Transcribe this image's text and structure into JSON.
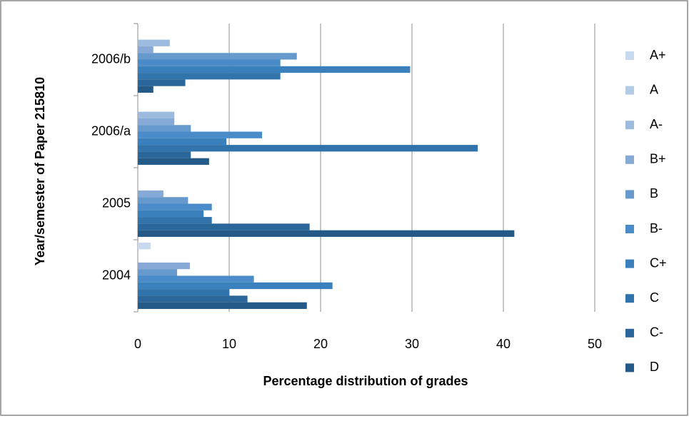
{
  "chart_data": {
    "type": "bar",
    "orientation": "horizontal",
    "x_label": "Percentage distribution of grades",
    "y_label": "Year/semester of Paper 215810",
    "categories": [
      "2004",
      "2005",
      "2006/a",
      "2006/b"
    ],
    "series": [
      {
        "name": "A+",
        "color": "#c9d9ee",
        "values": [
          1.4,
          0,
          0,
          0
        ]
      },
      {
        "name": "A",
        "color": "#b4cbe6",
        "values": [
          0,
          0,
          0,
          0
        ]
      },
      {
        "name": "A-",
        "color": "#9dbadf",
        "values": [
          0,
          0,
          4.0,
          3.5
        ]
      },
      {
        "name": "B+",
        "color": "#86a9d6",
        "values": [
          5.7,
          2.8,
          4.0,
          1.7
        ]
      },
      {
        "name": "B",
        "color": "#6699cc",
        "values": [
          4.3,
          5.5,
          5.8,
          17.4
        ]
      },
      {
        "name": "B-",
        "color": "#4a8cc9",
        "values": [
          12.7,
          8.1,
          13.6,
          15.6
        ]
      },
      {
        "name": "C+",
        "color": "#3a80bd",
        "values": [
          21.3,
          7.2,
          9.7,
          29.8
        ]
      },
      {
        "name": "C",
        "color": "#3173ab",
        "values": [
          10,
          8.1,
          37.2,
          15.6
        ]
      },
      {
        "name": "C-",
        "color": "#2a6699",
        "values": [
          12,
          18.8,
          5.8,
          5.2
        ]
      },
      {
        "name": "D",
        "color": "#235a88",
        "values": [
          18.5,
          41.2,
          7.8,
          1.7
        ]
      }
    ],
    "xlim": [
      0,
      50
    ],
    "xticks": [
      0,
      10,
      20,
      30,
      40,
      50
    ],
    "grid": true,
    "legend": "right"
  }
}
